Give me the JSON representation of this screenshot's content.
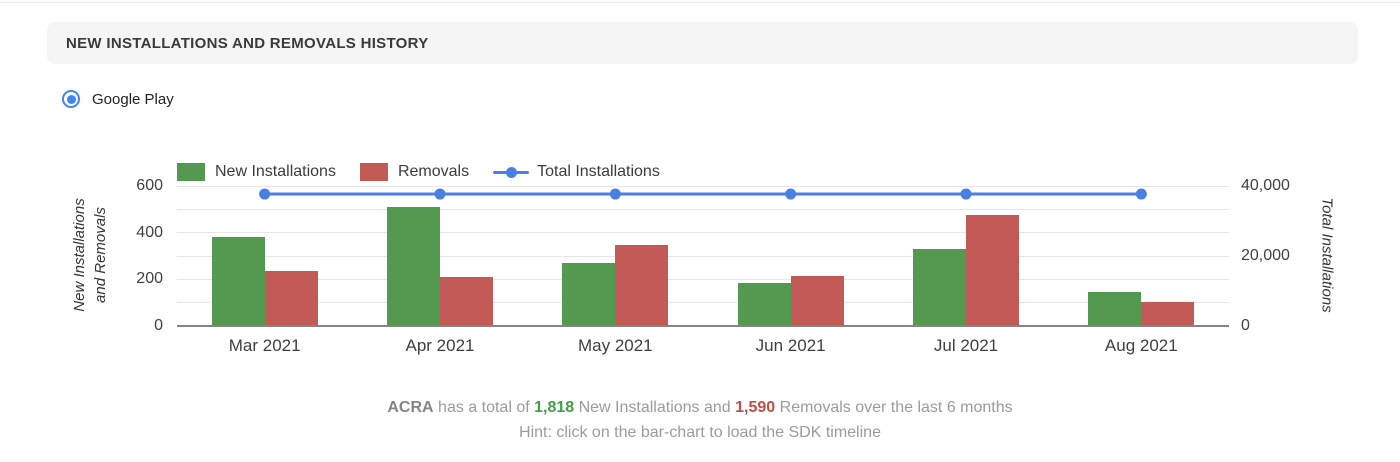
{
  "header": {
    "title": "NEW INSTALLATIONS AND REMOVALS HISTORY"
  },
  "store_selector": {
    "label": "Google Play",
    "selected": true,
    "accent_color": "#3f85f5"
  },
  "legend": [
    {
      "label": "New Installations",
      "marker": "swatch",
      "color": "#549950"
    },
    {
      "label": "Removals",
      "marker": "swatch",
      "color": "#c25b56"
    },
    {
      "label": "Total Installations",
      "marker": "line",
      "color": "#4a80e4"
    }
  ],
  "chart_data": {
    "type": "bar",
    "categories": [
      "Mar 2021",
      "Apr 2021",
      "May 2021",
      "Jun 2021",
      "Jul 2021",
      "Aug 2021"
    ],
    "series": [
      {
        "name": "New Installations",
        "type": "bar",
        "axis": "left",
        "color": "#549950",
        "values": [
          380,
          508,
          272,
          183,
          331,
          144
        ]
      },
      {
        "name": "Removals",
        "type": "bar",
        "axis": "left",
        "color": "#c25b56",
        "values": [
          237,
          211,
          348,
          215,
          474,
          105
        ]
      },
      {
        "name": "Total Installations",
        "type": "line",
        "axis": "right",
        "color": "#4a80e4",
        "values": [
          37700,
          37700,
          37700,
          37700,
          37700,
          37700
        ]
      }
    ],
    "left_axis": {
      "label_line1": "New Installations",
      "label_line2": "and Removals",
      "ticks": [
        0,
        200,
        400,
        600
      ],
      "range": [
        0,
        600
      ],
      "gridline_step": 100
    },
    "right_axis": {
      "label": "Total Installations",
      "ticks": [
        0,
        20000,
        40000
      ],
      "tick_labels": [
        "0",
        "20,000",
        "40,000"
      ],
      "range": [
        0,
        40000
      ]
    },
    "legend_position": "top",
    "grid": true
  },
  "summary": {
    "app_name": "ACRA",
    "text_1": " has a total of ",
    "installs_value": "1,818",
    "text_2": " New Installations and ",
    "removals_value": "1,590",
    "text_3": " Removals over the last 6 months",
    "hint": "Hint: click on the bar-chart to load the SDK timeline"
  }
}
